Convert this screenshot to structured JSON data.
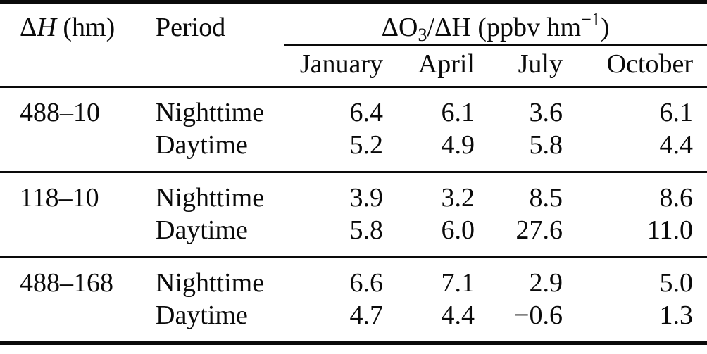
{
  "colors": {
    "text": "#0a0a0a",
    "background": "#ffffff",
    "rule": "#0a0a0a"
  },
  "table": {
    "header": {
      "dh_delta": "Δ",
      "dh_h_italic": "H",
      "dh_unit": " (hm)",
      "period_label": "Period",
      "span_pre": "ΔO",
      "span_sub": "3",
      "span_mid": "/ΔH (ppbv hm",
      "span_sup": "−1",
      "span_post": ")"
    },
    "months": [
      "January",
      "April",
      "July",
      "October"
    ],
    "blocks": [
      {
        "dh": "488–10",
        "rows": [
          {
            "period": "Nighttime",
            "values": [
              "6.4",
              "6.1",
              "3.6",
              "6.1"
            ]
          },
          {
            "period": "Daytime",
            "values": [
              "5.2",
              "4.9",
              "5.8",
              "4.4"
            ]
          }
        ]
      },
      {
        "dh": "118–10",
        "rows": [
          {
            "period": "Nighttime",
            "values": [
              "3.9",
              "3.2",
              "8.5",
              "8.6"
            ]
          },
          {
            "period": "Daytime",
            "values": [
              "5.8",
              "6.0",
              "27.6",
              "11.0"
            ]
          }
        ]
      },
      {
        "dh": "488–168",
        "rows": [
          {
            "period": "Nighttime",
            "values": [
              "6.6",
              "7.1",
              "2.9",
              "5.0"
            ]
          },
          {
            "period": "Daytime",
            "values": [
              "4.7",
              "4.4",
              "−0.6",
              "1.3"
            ]
          }
        ]
      }
    ]
  }
}
